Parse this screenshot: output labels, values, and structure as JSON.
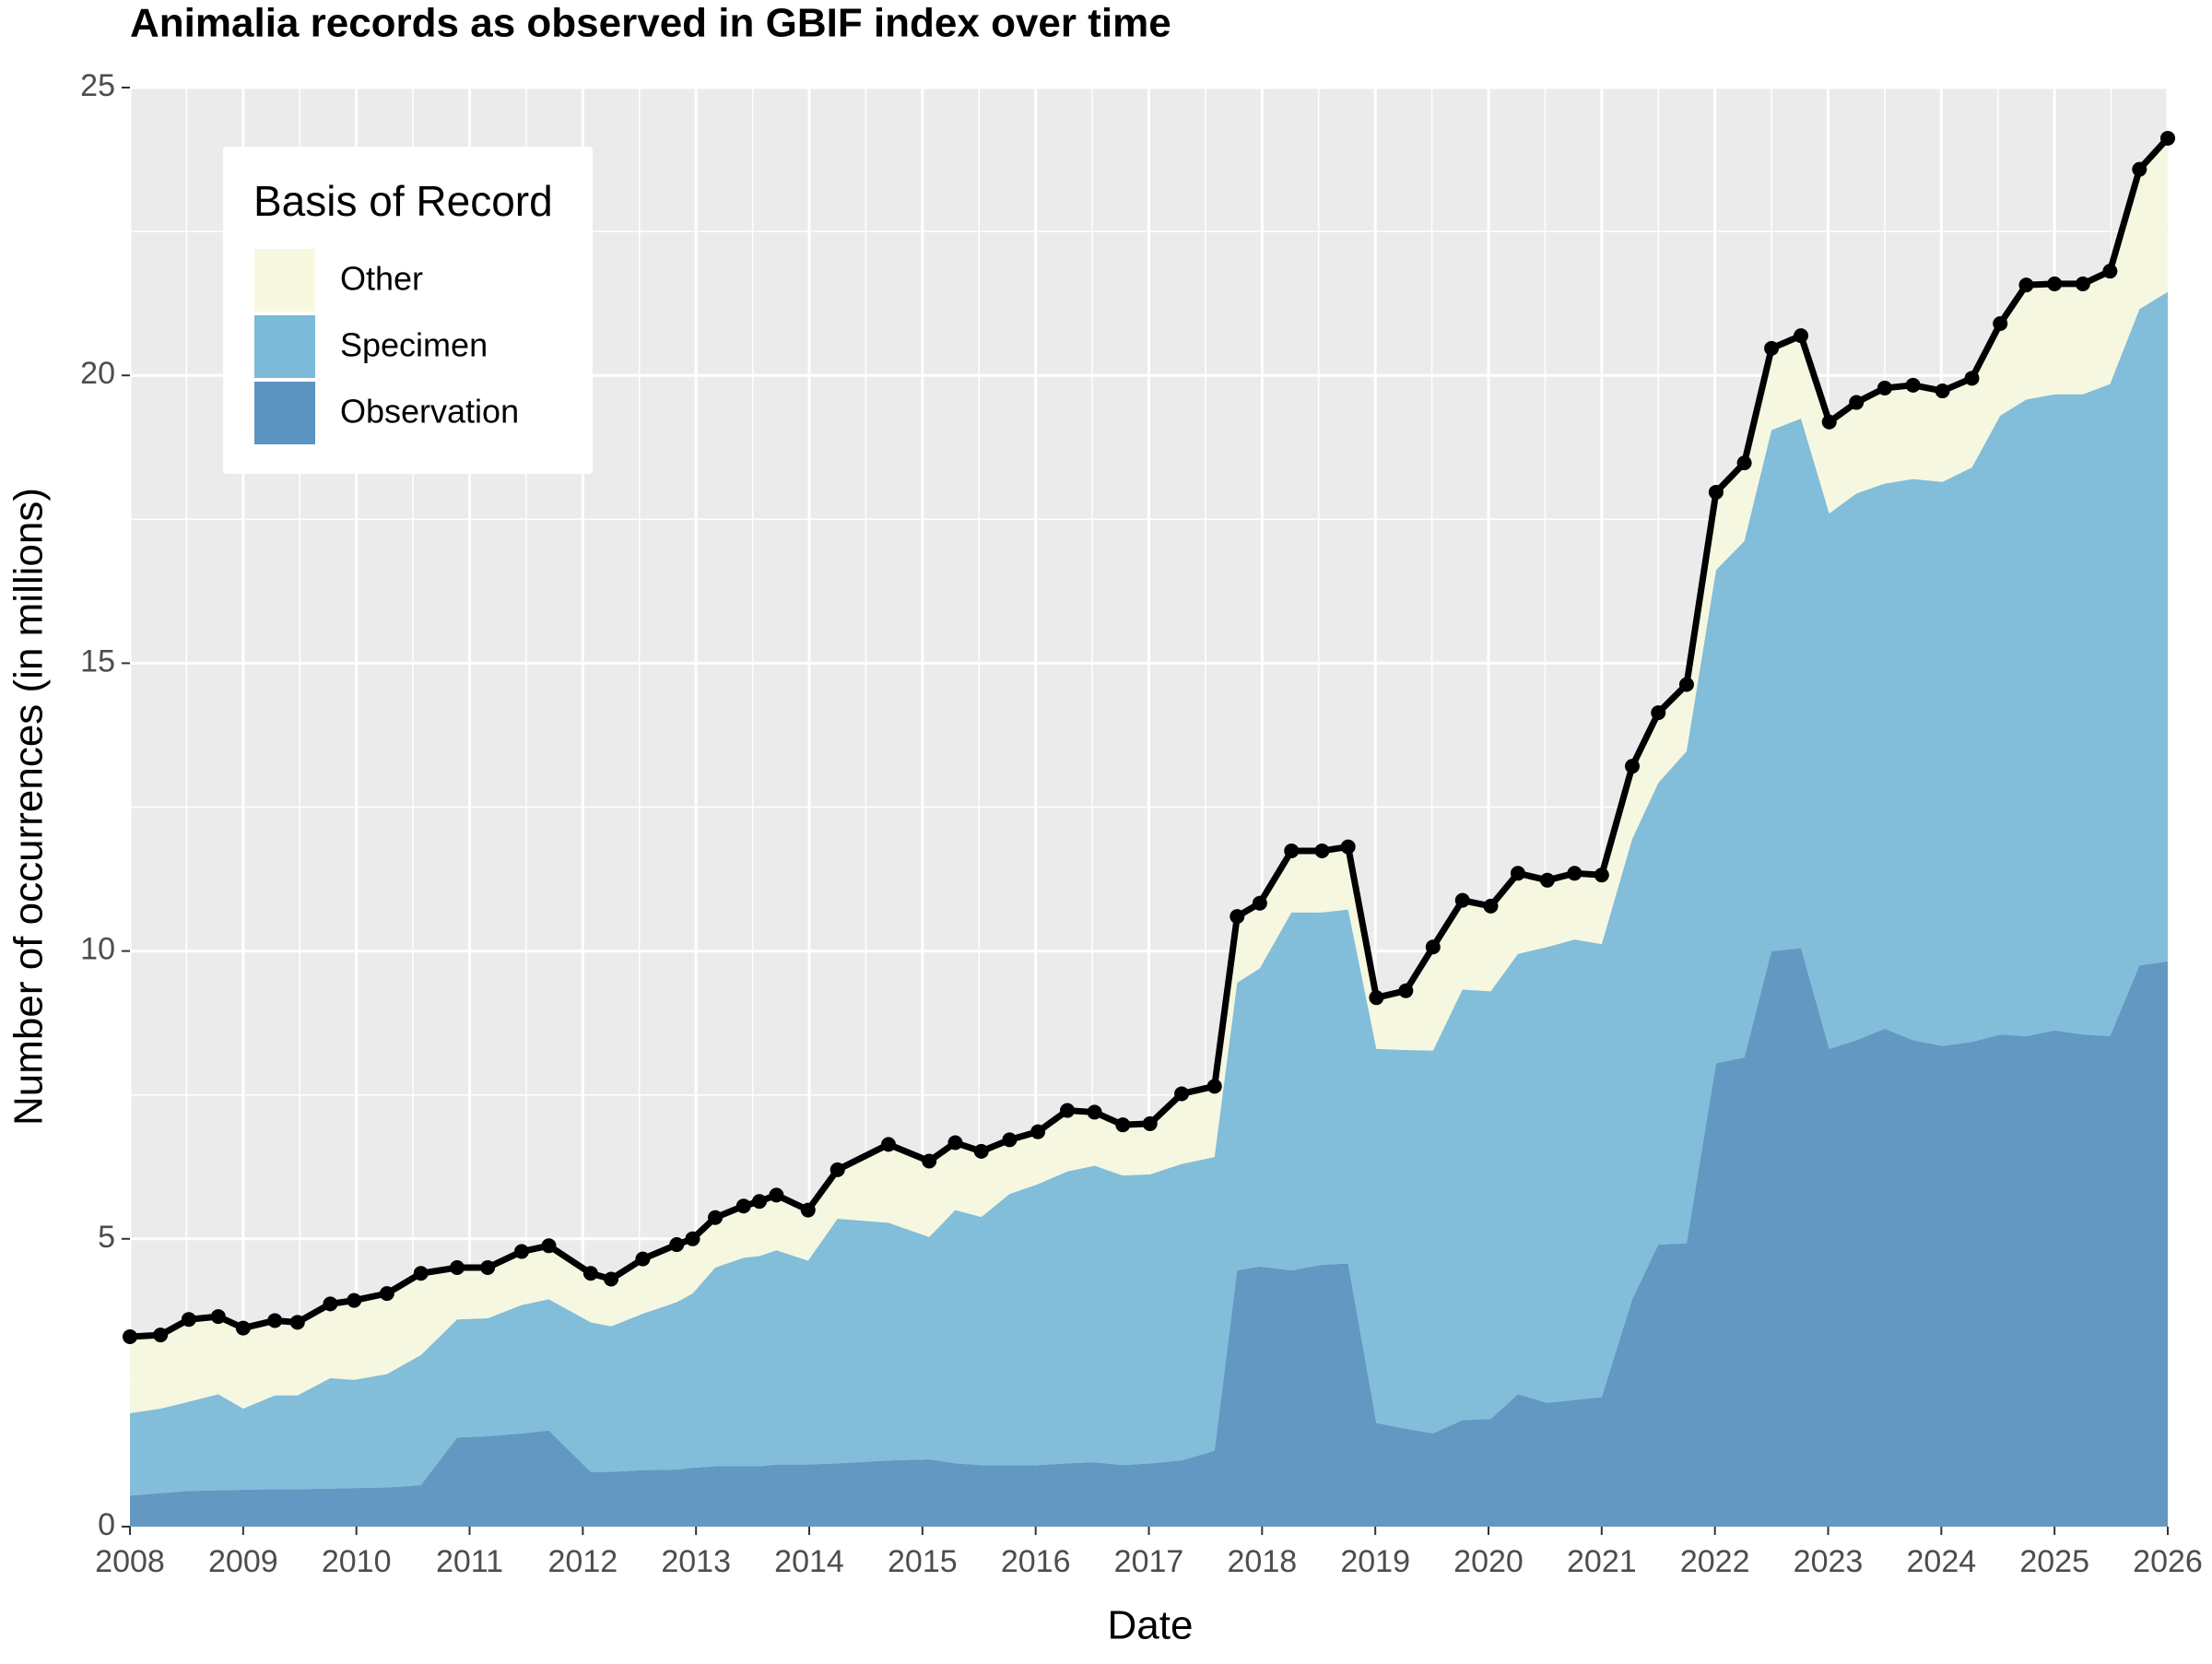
{
  "chart_data": {
    "type": "stacked-area",
    "title": "Animalia records as observed in GBIF index over time",
    "x_label": "Date",
    "y_label": "Number of occurrences (in millions)",
    "legend_title": "Basis of Record",
    "legend_position": "top-left",
    "grid": true,
    "total_line": {
      "color": "#000000"
    },
    "xlim": [
      2008,
      2026
    ],
    "xticks": [
      2008,
      2009,
      2010,
      2011,
      2012,
      2013,
      2014,
      2015,
      2016,
      2017,
      2018,
      2019,
      2020,
      2021,
      2022,
      2023,
      2024,
      2025,
      2026
    ],
    "ylim": [
      0,
      25
    ],
    "yticks": [
      0,
      5,
      10,
      15,
      20,
      25
    ],
    "x": [
      2008.0,
      2008.27,
      2008.52,
      2008.78,
      2009.0,
      2009.28,
      2009.48,
      2009.77,
      2009.98,
      2010.27,
      2010.57,
      2010.89,
      2011.16,
      2011.46,
      2011.7,
      2012.07,
      2012.25,
      2012.53,
      2012.83,
      2012.97,
      2013.17,
      2013.42,
      2013.56,
      2013.71,
      2013.99,
      2014.25,
      2014.7,
      2015.06,
      2015.29,
      2015.52,
      2015.77,
      2016.02,
      2016.28,
      2016.52,
      2016.77,
      2017.01,
      2017.29,
      2017.58,
      2017.78,
      2017.98,
      2018.26,
      2018.53,
      2018.76,
      2019.01,
      2019.27,
      2019.51,
      2019.77,
      2020.02,
      2020.26,
      2020.52,
      2020.76,
      2021.0,
      2021.27,
      2021.5,
      2021.75,
      2022.01,
      2022.26,
      2022.5,
      2022.76,
      2023.01,
      2023.25,
      2023.5,
      2023.75,
      2024.01,
      2024.27,
      2024.52,
      2024.75,
      2025.0,
      2025.25,
      2025.49,
      2025.75,
      2026.0
    ],
    "series": [
      {
        "name": "Observation",
        "color": "#5b94c0",
        "values": [
          0.54,
          0.58,
          0.62,
          0.63,
          0.64,
          0.65,
          0.65,
          0.66,
          0.67,
          0.68,
          0.72,
          1.55,
          1.57,
          1.62,
          1.67,
          0.95,
          0.95,
          0.98,
          0.99,
          1.02,
          1.05,
          1.05,
          1.05,
          1.08,
          1.08,
          1.1,
          1.15,
          1.17,
          1.1,
          1.07,
          1.07,
          1.07,
          1.1,
          1.12,
          1.07,
          1.1,
          1.15,
          1.32,
          4.45,
          4.52,
          4.45,
          4.55,
          4.57,
          1.8,
          1.7,
          1.62,
          1.85,
          1.87,
          2.3,
          2.15,
          2.2,
          2.25,
          3.95,
          4.9,
          4.92,
          8.05,
          8.15,
          10.0,
          10.05,
          8.3,
          8.45,
          8.65,
          8.45,
          8.35,
          8.42,
          8.55,
          8.52,
          8.62,
          8.55,
          8.52,
          9.75,
          9.82
        ]
      },
      {
        "name": "Specimen",
        "color": "#7cbad8",
        "values": [
          1.43,
          1.47,
          1.55,
          1.67,
          1.41,
          1.63,
          1.63,
          1.92,
          1.88,
          1.97,
          2.26,
          2.05,
          2.05,
          2.23,
          2.28,
          2.6,
          2.53,
          2.72,
          2.91,
          3.03,
          3.45,
          3.62,
          3.65,
          3.72,
          3.54,
          4.25,
          4.13,
          3.86,
          4.4,
          4.31,
          4.71,
          4.88,
          5.07,
          5.15,
          5.03,
          5.02,
          5.15,
          5.1,
          5.0,
          5.18,
          6.22,
          6.12,
          6.15,
          6.5,
          6.58,
          6.65,
          7.48,
          7.43,
          7.65,
          7.92,
          8.0,
          7.87,
          8.0,
          8.02,
          8.55,
          8.57,
          8.97,
          9.05,
          9.2,
          9.3,
          9.5,
          9.47,
          9.75,
          9.8,
          9.98,
          10.75,
          11.06,
          11.05,
          11.12,
          11.33,
          11.4,
          11.63
        ]
      },
      {
        "name": "Other",
        "color": "#f7f8df",
        "values": [
          1.33,
          1.28,
          1.43,
          1.35,
          1.4,
          1.3,
          1.27,
          1.29,
          1.38,
          1.4,
          1.42,
          0.9,
          0.88,
          0.93,
          0.93,
          0.85,
          0.82,
          0.95,
          1.0,
          0.95,
          0.87,
          0.9,
          0.95,
          0.96,
          0.88,
          0.85,
          1.36,
          1.32,
          1.17,
          1.14,
          0.94,
          0.91,
          1.06,
          0.93,
          0.88,
          0.88,
          1.22,
          1.23,
          1.15,
          1.13,
          1.07,
          1.07,
          1.09,
          0.89,
          1.03,
          1.8,
          1.55,
          1.48,
          1.4,
          1.16,
          1.15,
          1.2,
          1.26,
          1.22,
          1.16,
          1.35,
          1.36,
          1.42,
          1.44,
          1.59,
          1.58,
          1.66,
          1.63,
          1.58,
          1.55,
          1.6,
          1.99,
          1.92,
          1.92,
          1.96,
          2.43,
          2.67
        ]
      }
    ]
  }
}
